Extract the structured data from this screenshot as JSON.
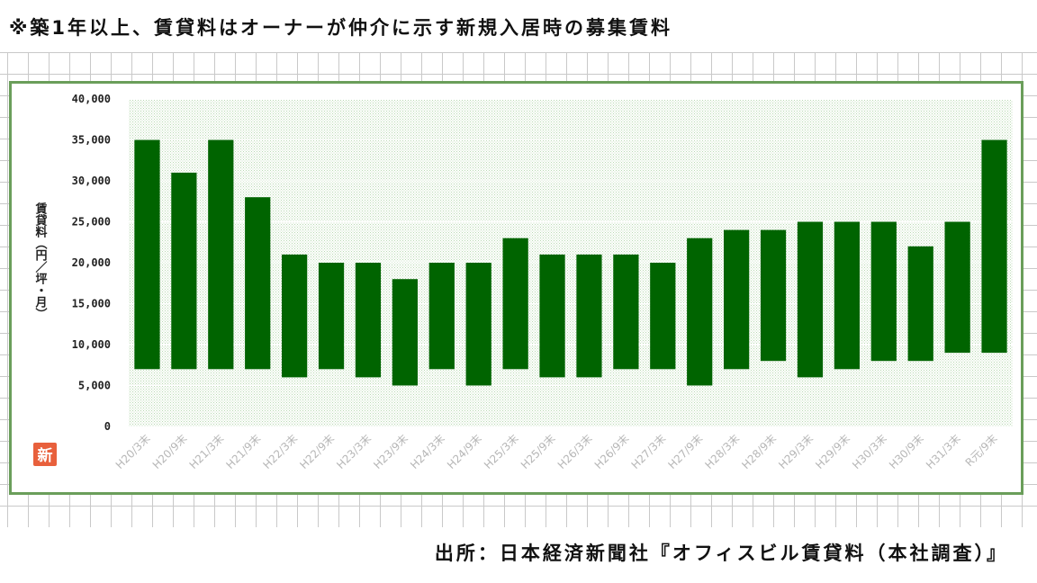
{
  "note": "※築1年以上、賃貸料はオーナーが仲介に示す新規入居時の募集賃料",
  "source": "出所：日本経済新聞社『オフィスビル賃貸料（本社調査）』",
  "logo_text": "新",
  "colors": {
    "bar": "#006400",
    "frame": "#6a9e5a",
    "plot_dots": "#b9d9b3",
    "logo": "#e8603c"
  },
  "chart_data": {
    "type": "bar",
    "subtype": "floating-range",
    "title": "",
    "xlabel": "",
    "ylabel": "賃貸料（円／坪・月）",
    "ylim": [
      0,
      40000
    ],
    "yticks": [
      0,
      5000,
      10000,
      15000,
      20000,
      25000,
      30000,
      35000,
      40000
    ],
    "ytick_labels": [
      "0",
      "5,000",
      "10,000",
      "15,000",
      "20,000",
      "25,000",
      "30,000",
      "35,000",
      "40,000"
    ],
    "gridlines": "horizontal, solid, every 5,000",
    "legend": "none",
    "categories": [
      "H20/3末",
      "H20/9末",
      "H21/3末",
      "H21/9末",
      "H22/3末",
      "H22/9末",
      "H23/3末",
      "H23/9末",
      "H24/3末",
      "H24/9末",
      "H25/3末",
      "H25/9末",
      "H26/3末",
      "H26/9末",
      "H27/3末",
      "H27/9末",
      "H28/3末",
      "H28/9末",
      "H29/3末",
      "H29/9末",
      "H30/3末",
      "H30/9末",
      "H31/3末",
      "R元/9末"
    ],
    "low": [
      7000,
      7000,
      7000,
      7000,
      6000,
      7000,
      6000,
      5000,
      7000,
      5000,
      7000,
      6000,
      6000,
      7000,
      7000,
      5000,
      7000,
      8000,
      6000,
      7000,
      8000,
      8000,
      9000,
      9000
    ],
    "high": [
      35000,
      31000,
      35000,
      28000,
      21000,
      20000,
      20000,
      18000,
      20000,
      20000,
      23000,
      21000,
      21000,
      21000,
      20000,
      23000,
      24000,
      24000,
      25000,
      25000,
      25000,
      22000,
      25000,
      35000
    ]
  }
}
